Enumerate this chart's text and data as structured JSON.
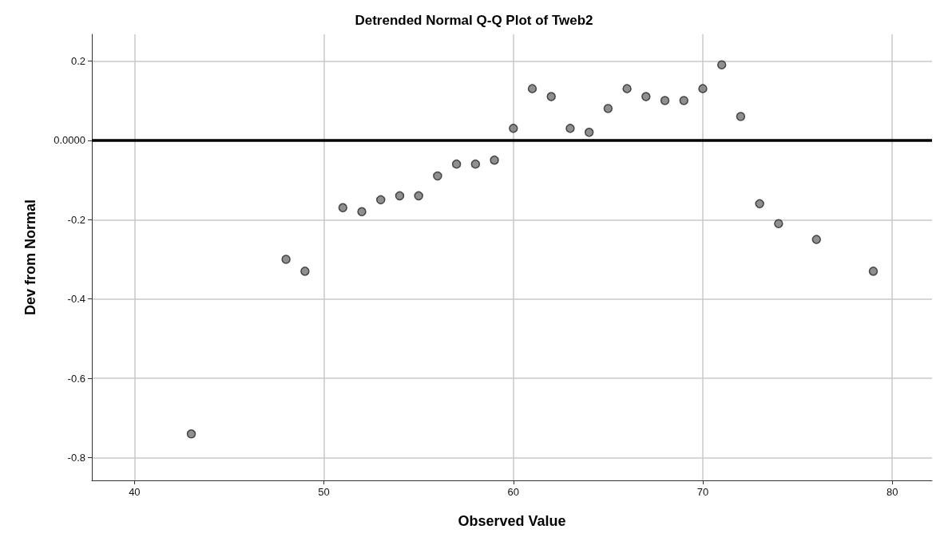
{
  "chart_data": {
    "type": "scatter",
    "title": "Detrended Normal Q-Q Plot of Tweb2",
    "xlabel": "Observed Value",
    "ylabel": "Dev from Normal",
    "x": [
      43,
      48,
      49,
      51,
      52,
      53,
      54,
      55,
      56,
      57,
      58,
      59,
      60,
      61,
      62,
      63,
      64,
      65,
      66,
      67,
      68,
      69,
      70,
      71,
      72,
      73,
      74,
      76,
      79
    ],
    "series": [
      {
        "color": "#737373",
        "values": [
          -0.74,
          -0.3,
          -0.33,
          -0.17,
          -0.18,
          -0.15,
          -0.14,
          -0.14,
          -0.09,
          -0.06,
          -0.06,
          -0.05,
          0.03,
          0.13,
          0.11,
          0.03,
          0.02,
          0.08,
          0.13,
          0.11,
          0.1,
          0.1,
          0.13,
          0.19,
          0.06,
          -0.16,
          -0.21,
          -0.25,
          -0.33
        ]
      }
    ],
    "xlim": [
      37.75,
      82.1
    ],
    "xticks": [
      40,
      50,
      60,
      70,
      80
    ],
    "ylim": [
      -0.857,
      0.267
    ],
    "yticks": [
      {
        "value": -0.8,
        "label": "-0.8"
      },
      {
        "value": -0.6,
        "label": "-0.6"
      },
      {
        "value": -0.4,
        "label": "-0.4"
      },
      {
        "value": -0.2,
        "label": "-0.2"
      },
      {
        "value": 0,
        "label": "0.0000"
      },
      {
        "value": 0.2,
        "label": "0.2"
      }
    ],
    "ref_lines": [
      {
        "axis": "y",
        "value": 0,
        "color": "#000000"
      }
    ],
    "grid": true,
    "marker": "circle"
  }
}
